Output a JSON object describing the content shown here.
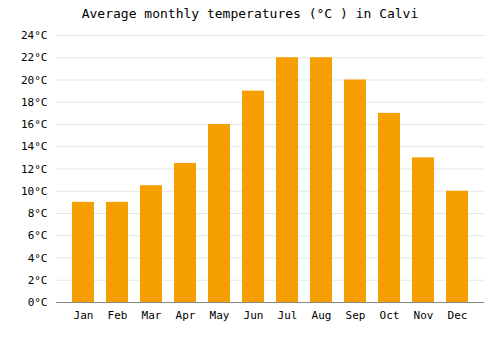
{
  "chart_data": {
    "type": "bar",
    "title": "Average monthly temperatures (°C ) in Calvi",
    "categories": [
      "Jan",
      "Feb",
      "Mar",
      "Apr",
      "May",
      "Jun",
      "Jul",
      "Aug",
      "Sep",
      "Oct",
      "Nov",
      "Dec"
    ],
    "values": [
      9,
      9,
      10.5,
      12.5,
      16,
      19,
      22,
      22,
      20,
      17,
      13,
      10
    ],
    "color": "#F5A000",
    "ylim": [
      0,
      24
    ],
    "yticks": [
      {
        "value": 0,
        "label": "0°C"
      },
      {
        "value": 2,
        "label": "2°C"
      },
      {
        "value": 4,
        "label": "4°C"
      },
      {
        "value": 6,
        "label": "6°C"
      },
      {
        "value": 8,
        "label": "8°C"
      },
      {
        "value": 10,
        "label": "10°C"
      },
      {
        "value": 12,
        "label": "12°C"
      },
      {
        "value": 14,
        "label": "14°C"
      },
      {
        "value": 16,
        "label": "16°C"
      },
      {
        "value": 18,
        "label": "18°C"
      },
      {
        "value": 20,
        "label": "20°C"
      },
      {
        "value": 22,
        "label": "22°C"
      },
      {
        "value": 24,
        "label": "24°C"
      }
    ],
    "grid": true
  }
}
